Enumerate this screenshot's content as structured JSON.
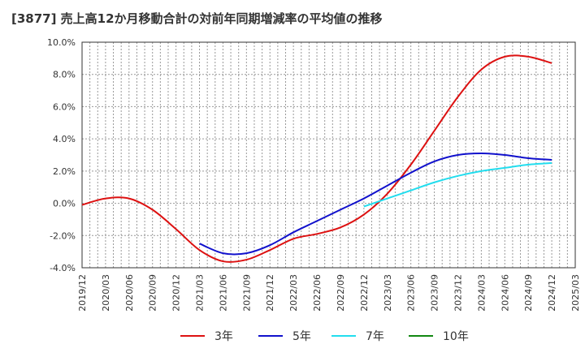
{
  "title": "[3877]  売上高12か月移動合計の対前年同期増減率の平均値の推移",
  "chart_data": {
    "type": "line",
    "title": "[3877]  売上高12か月移動合計の対前年同期増減率の平均値の推移",
    "xlabel": "",
    "ylabel": "",
    "x_ticks": [
      "2019/12",
      "2020/03",
      "2020/06",
      "2020/09",
      "2020/12",
      "2021/03",
      "2021/06",
      "2021/09",
      "2021/12",
      "2022/03",
      "2022/06",
      "2022/09",
      "2022/12",
      "2023/03",
      "2023/06",
      "2023/09",
      "2023/12",
      "2024/03",
      "2024/06",
      "2024/09",
      "2024/12",
      "2025/03"
    ],
    "y_ticks": [
      "-4.0%",
      "-2.0%",
      "0.0%",
      "2.0%",
      "4.0%",
      "6.0%",
      "8.0%",
      "10.0%"
    ],
    "ylim": [
      -4,
      10
    ],
    "grid": true,
    "legend_position": "bottom",
    "series": [
      {
        "name": "3年",
        "color": "#dd1111",
        "x": [
          "2019/12",
          "2020/03",
          "2020/06",
          "2020/09",
          "2020/12",
          "2021/03",
          "2021/06",
          "2021/09",
          "2021/12",
          "2022/03",
          "2022/06",
          "2022/09",
          "2022/12",
          "2023/03",
          "2023/06",
          "2023/09",
          "2023/12",
          "2024/03",
          "2024/06",
          "2024/09",
          "2024/12"
        ],
        "values": [
          -0.1,
          0.3,
          0.3,
          -0.4,
          -1.6,
          -2.9,
          -3.6,
          -3.5,
          -2.9,
          -2.2,
          -1.9,
          -1.5,
          -0.7,
          0.6,
          2.4,
          4.5,
          6.6,
          8.3,
          9.1,
          9.1,
          8.7
        ]
      },
      {
        "name": "5年",
        "color": "#1111cc",
        "x": [
          "2021/03",
          "2021/06",
          "2021/09",
          "2021/12",
          "2022/03",
          "2022/06",
          "2022/09",
          "2022/12",
          "2023/03",
          "2023/06",
          "2023/09",
          "2023/12",
          "2024/03",
          "2024/06",
          "2024/09",
          "2024/12"
        ],
        "values": [
          -2.5,
          -3.1,
          -3.1,
          -2.6,
          -1.8,
          -1.1,
          -0.4,
          0.3,
          1.1,
          1.9,
          2.6,
          3.0,
          3.1,
          3.0,
          2.8,
          2.7
        ]
      },
      {
        "name": "7年",
        "color": "#22ddee",
        "x": [
          "2022/12",
          "2023/03",
          "2023/06",
          "2023/09",
          "2023/12",
          "2024/03",
          "2024/06",
          "2024/09",
          "2024/12"
        ],
        "values": [
          -0.2,
          0.3,
          0.8,
          1.3,
          1.7,
          2.0,
          2.2,
          2.4,
          2.5
        ]
      },
      {
        "name": "10年",
        "color": "#118811",
        "x": [],
        "values": []
      }
    ]
  }
}
